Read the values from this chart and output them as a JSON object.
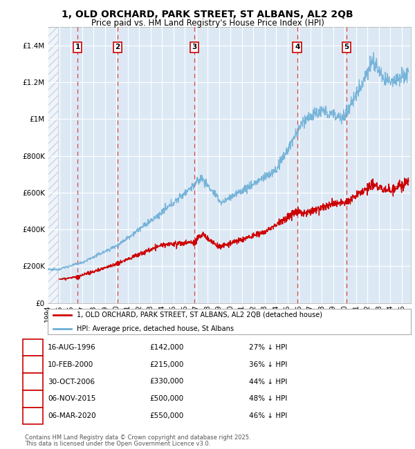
{
  "title_line1": "1, OLD ORCHARD, PARK STREET, ST ALBANS, AL2 2QB",
  "title_line2": "Price paid vs. HM Land Registry's House Price Index (HPI)",
  "ylabel_values": [
    0,
    200000,
    400000,
    600000,
    800000,
    1000000,
    1200000,
    1400000
  ],
  "ylim": [
    0,
    1500000
  ],
  "xlim_start": 1994.0,
  "xlim_end": 2025.8,
  "background_color": "#ffffff",
  "plot_bg_color": "#dce9f5",
  "grid_color": "#ffffff",
  "purchases": [
    {
      "num": 1,
      "date_x": 1996.62,
      "price": 142000,
      "label": "16-AUG-1996",
      "price_label": "£142,000",
      "pct_label": "27% ↓ HPI"
    },
    {
      "num": 2,
      "date_x": 2000.12,
      "price": 215000,
      "label": "10-FEB-2000",
      "price_label": "£215,000",
      "pct_label": "36% ↓ HPI"
    },
    {
      "num": 3,
      "date_x": 2006.83,
      "price": 330000,
      "label": "30-OCT-2006",
      "price_label": "£330,000",
      "pct_label": "44% ↓ HPI"
    },
    {
      "num": 4,
      "date_x": 2015.85,
      "price": 500000,
      "label": "06-NOV-2015",
      "price_label": "£500,000",
      "pct_label": "48% ↓ HPI"
    },
    {
      "num": 5,
      "date_x": 2020.18,
      "price": 550000,
      "label": "06-MAR-2020",
      "price_label": "£550,000",
      "pct_label": "46% ↓ HPI"
    }
  ],
  "legend_line1_label": "1, OLD ORCHARD, PARK STREET, ST ALBANS, AL2 2QB (detached house)",
  "legend_line2_label": "HPI: Average price, detached house, St Albans",
  "footer_line1": "Contains HM Land Registry data © Crown copyright and database right 2025.",
  "footer_line2": "This data is licensed under the Open Government Licence v3.0.",
  "red_line_color": "#cc0000",
  "blue_line_color": "#6baed6",
  "dashed_vline_color": "#dd4444",
  "box_edge_color": "#cc0000"
}
